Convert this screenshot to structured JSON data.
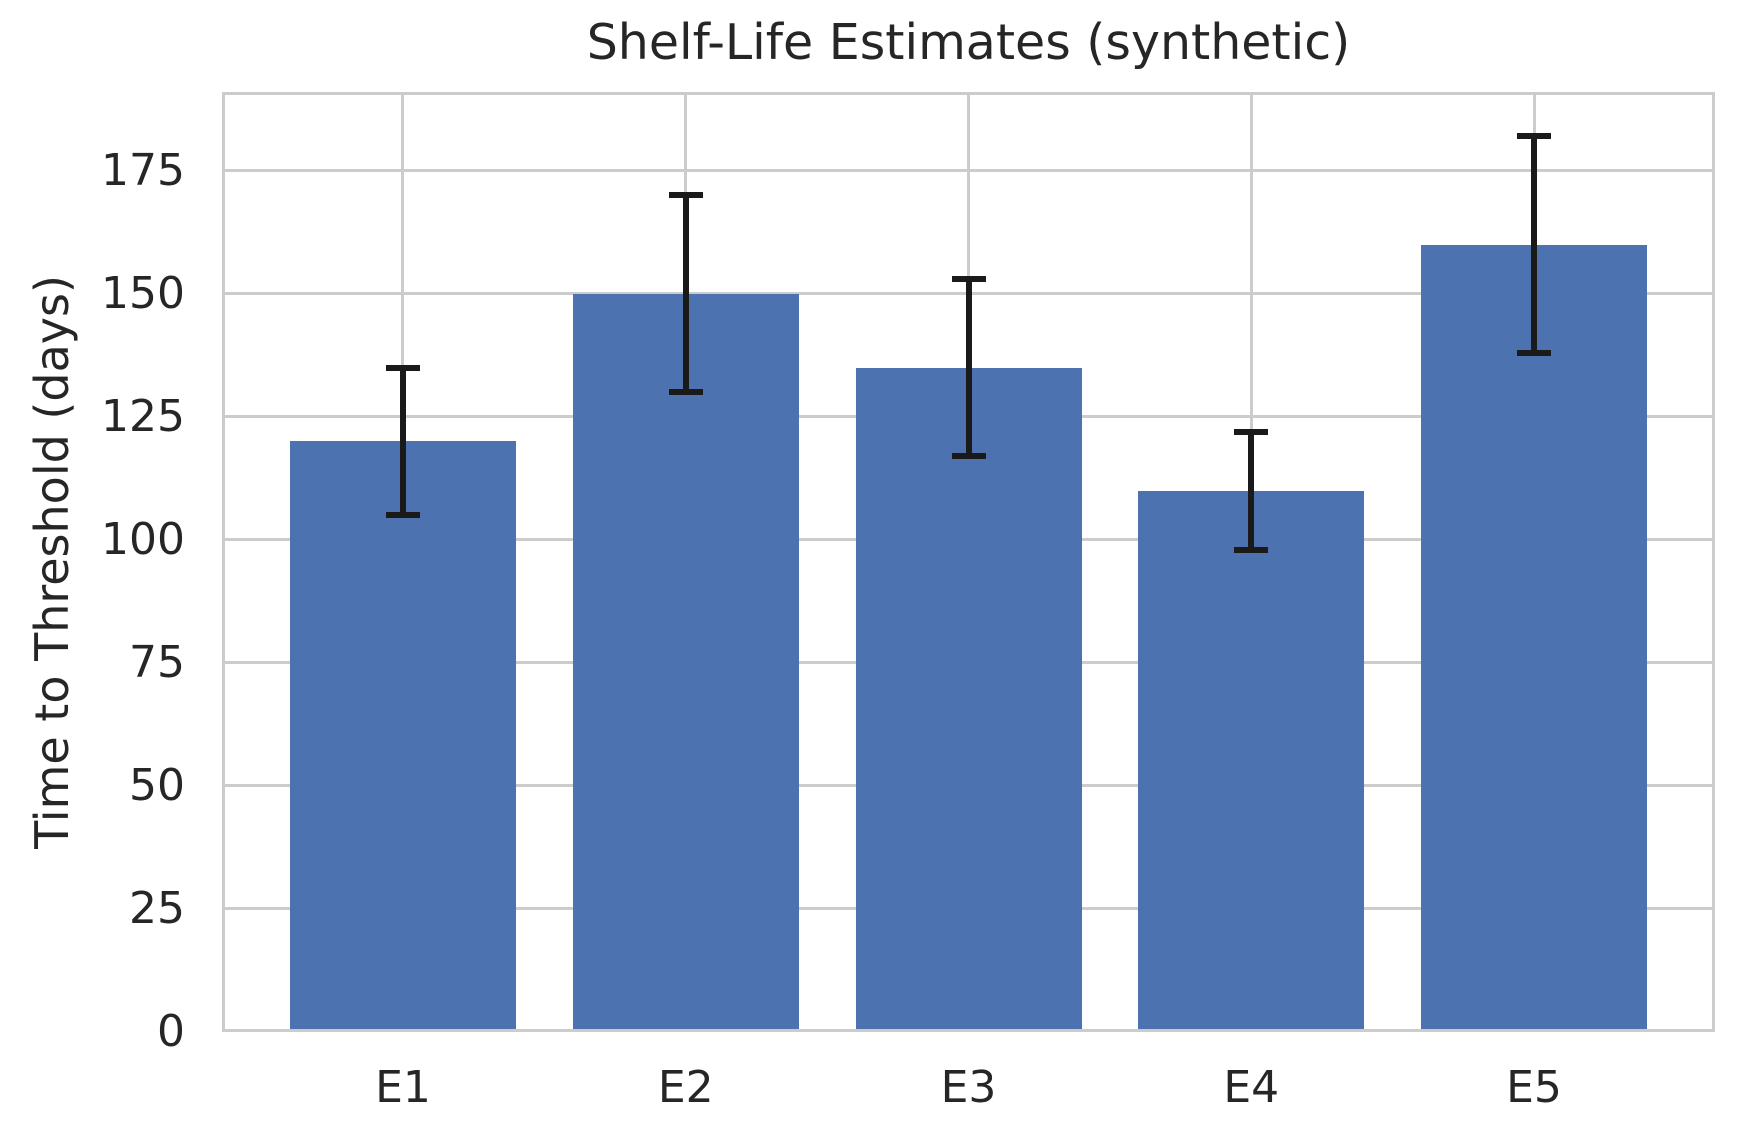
{
  "chart_data": {
    "type": "bar",
    "title": "Shelf-Life Estimates (synthetic)",
    "xlabel": "",
    "ylabel": "Time to Threshold (days)",
    "categories": [
      "E1",
      "E2",
      "E3",
      "E4",
      "E5"
    ],
    "series": [
      {
        "name": "Time to Threshold (days)",
        "values": [
          120,
          150,
          135,
          110,
          160
        ],
        "error_minus": [
          15,
          20,
          18,
          12,
          22
        ],
        "error_plus": [
          15,
          20,
          18,
          12,
          22
        ],
        "error_low": [
          105,
          130,
          117,
          98,
          138
        ],
        "error_high": [
          135,
          170,
          153,
          122,
          182
        ]
      }
    ],
    "yticks": [
      0,
      25,
      50,
      75,
      100,
      125,
      150,
      175
    ],
    "ylim": [
      0,
      191
    ],
    "xlim": [
      -0.64,
      4.64
    ],
    "bar_rel_width": 0.8,
    "grid": {
      "horizontal": true,
      "vertical": true
    },
    "legend_position": "none",
    "style": {
      "bar_color": "#4c72b0",
      "error_color": "#1a1a1a",
      "grid_color": "#cccccc",
      "spine_color": "#cccccc",
      "text_color": "#262626",
      "background": "#ffffff"
    }
  }
}
